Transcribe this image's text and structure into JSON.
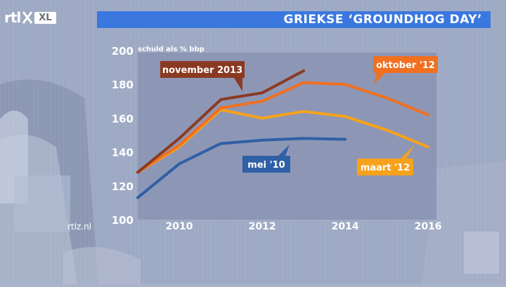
{
  "logo": {
    "brand": "rtl",
    "channel": "XL"
  },
  "banner": {
    "title": "GRIEKSE ‘GROUNDHOG DAY’"
  },
  "watermark": "rtlz.nl",
  "chart_data": {
    "type": "line",
    "title": "GRIEKSE ‘GROUNDHOG DAY’",
    "ylabel": "schuld als % bbp",
    "xlabel": "",
    "xlim": [
      2009,
      2016.2
    ],
    "ylim": [
      100,
      200
    ],
    "xticks": [
      2010,
      2012,
      2014,
      2016
    ],
    "yticks": [
      100,
      120,
      140,
      160,
      180,
      200
    ],
    "grid": false,
    "legend": "inline-labels",
    "series": [
      {
        "name": "mei '10",
        "color": "#2f5fa6",
        "x": [
          2009,
          2010,
          2011,
          2012,
          2013,
          2014
        ],
        "y": [
          113,
          133,
          145,
          147,
          148,
          147.5
        ]
      },
      {
        "name": "maart '12",
        "color": "#f7a21b",
        "x": [
          2009,
          2010,
          2011,
          2012,
          2013,
          2014,
          2015,
          2016
        ],
        "y": [
          128,
          143,
          165,
          160,
          164,
          161,
          153,
          143
        ]
      },
      {
        "name": "oktober '12",
        "color": "#f07020",
        "x": [
          2009,
          2010,
          2011,
          2012,
          2013,
          2014,
          2015,
          2016
        ],
        "y": [
          128,
          144,
          166,
          170,
          181,
          180,
          172,
          162
        ]
      },
      {
        "name": "november 2013",
        "color": "#8b3a22",
        "x": [
          2009,
          2010,
          2011,
          2012,
          2013
        ],
        "y": [
          128,
          148,
          171,
          175,
          188
        ]
      }
    ]
  }
}
